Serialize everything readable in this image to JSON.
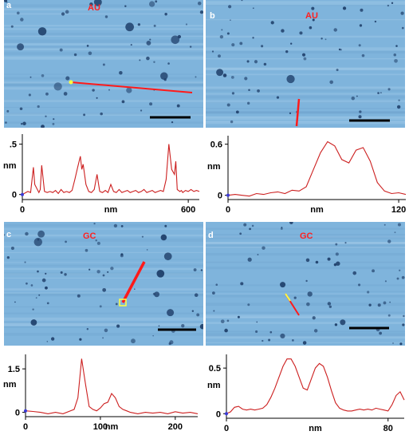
{
  "figure": {
    "panels": [
      {
        "id": "a",
        "label": "a",
        "sample": "AU"
      },
      {
        "id": "b",
        "label": "b",
        "sample": "AU"
      },
      {
        "id": "c",
        "label": "c",
        "sample": "GC"
      },
      {
        "id": "d",
        "label": "d",
        "sample": "GC"
      }
    ],
    "colors": {
      "afm_bg": "#7fb4dc",
      "afm_dark": "#1f3f6a",
      "profile_line": "#cc1f1f",
      "scan_line": "#ff1a1a"
    }
  },
  "chart_data": [
    {
      "id": "a",
      "type": "line",
      "xlabel": "nm",
      "ylabel": "nm",
      "xlim": [
        0,
        640
      ],
      "ylim": [
        -0.05,
        0.6
      ],
      "xticks": [
        "0",
        "600"
      ],
      "yticks": [
        "0",
        ".5"
      ],
      "series": [
        {
          "x": [
            0,
            20,
            30,
            40,
            45,
            60,
            65,
            70,
            80,
            90,
            100,
            110,
            120,
            130,
            140,
            150,
            160,
            170,
            180,
            190,
            200,
            210,
            215,
            220,
            230,
            240,
            250,
            260,
            270,
            280,
            290,
            300,
            310,
            320,
            330,
            340,
            350,
            360,
            370,
            380,
            390,
            400,
            410,
            420,
            430,
            440,
            450,
            460,
            470,
            480,
            490,
            500,
            510,
            520,
            530,
            540,
            550,
            555,
            560,
            570,
            575,
            580,
            590,
            600,
            610,
            620,
            630,
            640
          ],
          "y": [
            0.0,
            0.03,
            0.02,
            0.27,
            0.1,
            0.02,
            0.05,
            0.29,
            0.03,
            0.02,
            0.03,
            0.02,
            0.04,
            0.01,
            0.05,
            0.02,
            0.03,
            0.02,
            0.04,
            0.15,
            0.27,
            0.38,
            0.25,
            0.3,
            0.1,
            0.03,
            0.02,
            0.05,
            0.2,
            0.03,
            0.02,
            0.04,
            0.02,
            0.1,
            0.03,
            0.02,
            0.05,
            0.02,
            0.03,
            0.04,
            0.02,
            0.03,
            0.04,
            0.02,
            0.03,
            0.05,
            0.02,
            0.03,
            0.04,
            0.02,
            0.03,
            0.04,
            0.03,
            0.15,
            0.5,
            0.25,
            0.2,
            0.33,
            0.05,
            0.03,
            0.04,
            0.02,
            0.04,
            0.03,
            0.05,
            0.03,
            0.04,
            0.03
          ]
        }
      ]
    },
    {
      "id": "b",
      "type": "line",
      "xlabel": "nm",
      "ylabel": "nm",
      "xlim": [
        0,
        125
      ],
      "ylim": [
        -0.05,
        0.7
      ],
      "xticks": [
        "0",
        "120"
      ],
      "yticks": [
        "0",
        "0.6"
      ],
      "series": [
        {
          "x": [
            0,
            5,
            10,
            15,
            20,
            25,
            30,
            35,
            40,
            45,
            50,
            55,
            60,
            65,
            70,
            75,
            80,
            85,
            90,
            95,
            100,
            105,
            110,
            115,
            120,
            125
          ],
          "y": [
            0.0,
            0.01,
            0.0,
            -0.01,
            0.02,
            0.01,
            0.03,
            0.04,
            0.02,
            0.06,
            0.05,
            0.1,
            0.3,
            0.5,
            0.63,
            0.58,
            0.42,
            0.38,
            0.53,
            0.56,
            0.4,
            0.15,
            0.05,
            0.02,
            0.03,
            0.01
          ]
        }
      ]
    },
    {
      "id": "c",
      "type": "line",
      "xlabel": "nm",
      "ylabel": "nm",
      "xlim": [
        0,
        230
      ],
      "ylim": [
        -0.15,
        2.0
      ],
      "xticks": [
        "0",
        "100",
        "200"
      ],
      "yticks": [
        "0",
        "1.5"
      ],
      "series": [
        {
          "x": [
            0,
            10,
            20,
            30,
            40,
            50,
            60,
            65,
            70,
            75,
            80,
            85,
            90,
            95,
            100,
            105,
            110,
            115,
            120,
            125,
            130,
            135,
            140,
            150,
            160,
            170,
            180,
            190,
            200,
            210,
            220,
            230
          ],
          "y": [
            0.05,
            0.03,
            0.0,
            -0.05,
            0.0,
            -0.05,
            0.05,
            0.1,
            0.5,
            1.85,
            1.0,
            0.2,
            0.1,
            0.05,
            0.15,
            0.3,
            0.35,
            0.65,
            0.5,
            0.2,
            0.1,
            0.05,
            0.0,
            -0.05,
            0.0,
            -0.03,
            0.0,
            -0.05,
            0.02,
            -0.03,
            0.0,
            -0.05
          ]
        }
      ]
    },
    {
      "id": "d",
      "type": "line",
      "xlabel": "nm",
      "ylabel": "nm",
      "xlim": [
        0,
        88
      ],
      "ylim": [
        -0.05,
        0.65
      ],
      "xticks": [
        "0",
        "80"
      ],
      "yticks": [
        "0",
        "0.5"
      ],
      "series": [
        {
          "x": [
            0,
            2,
            4,
            6,
            8,
            10,
            12,
            14,
            16,
            18,
            20,
            22,
            24,
            26,
            28,
            30,
            32,
            34,
            36,
            38,
            40,
            42,
            44,
            46,
            48,
            50,
            52,
            54,
            56,
            58,
            60,
            62,
            64,
            66,
            68,
            70,
            72,
            74,
            76,
            78,
            80,
            82,
            84,
            86,
            88
          ],
          "y": [
            0.0,
            0.02,
            0.07,
            0.08,
            0.05,
            0.04,
            0.05,
            0.04,
            0.05,
            0.06,
            0.1,
            0.18,
            0.28,
            0.4,
            0.52,
            0.6,
            0.6,
            0.52,
            0.4,
            0.28,
            0.26,
            0.38,
            0.5,
            0.55,
            0.52,
            0.4,
            0.25,
            0.12,
            0.06,
            0.04,
            0.03,
            0.03,
            0.04,
            0.05,
            0.04,
            0.05,
            0.04,
            0.06,
            0.05,
            0.04,
            0.03,
            0.1,
            0.2,
            0.24,
            0.15
          ]
        }
      ]
    }
  ]
}
